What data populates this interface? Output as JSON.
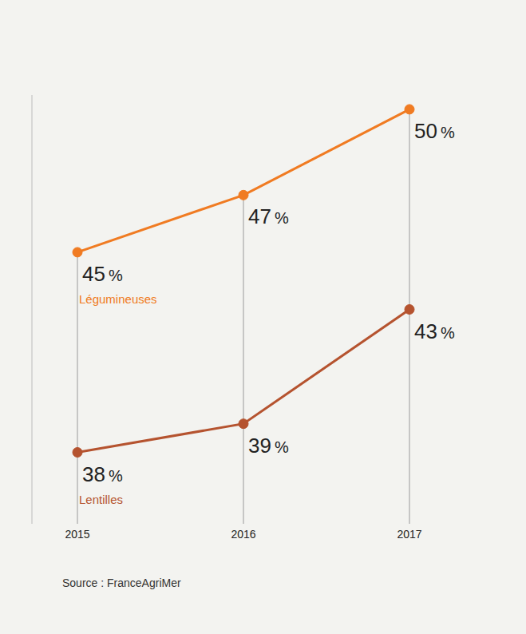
{
  "chart_data": {
    "type": "line",
    "categories": [
      "2015",
      "2016",
      "2017"
    ],
    "series": [
      {
        "name": "Légumineuses",
        "color": "#f07b22",
        "values": [
          45,
          47,
          50
        ],
        "value_labels": [
          "45 %",
          "47 %",
          "50 %"
        ],
        "marker": "circle"
      },
      {
        "name": "Lentilles",
        "color": "#b5532f",
        "values": [
          38,
          39,
          43
        ],
        "value_labels": [
          "38 %",
          "39 %",
          "43 %"
        ],
        "marker": "circle"
      }
    ],
    "ylim": [
      35.5,
      50.5
    ],
    "grid": false,
    "data_labels": true,
    "tick_labels": "x",
    "source": "Source : FranceAgriMer"
  }
}
